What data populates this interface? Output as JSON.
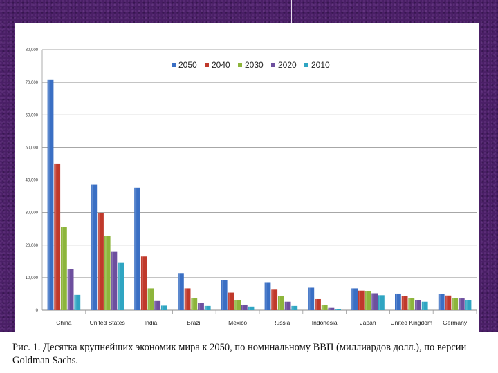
{
  "chart_data": {
    "type": "bar",
    "categories": [
      "China",
      "United States",
      "India",
      "Brazil",
      "Mexico",
      "Russia",
      "Indonesia",
      "Japan",
      "United Kingdom",
      "Germany"
    ],
    "series": [
      {
        "name": "2050",
        "color": "#3a6fc4",
        "values": [
          70700,
          38500,
          37600,
          11400,
          9300,
          8600,
          6900,
          6700,
          5100,
          5000
        ]
      },
      {
        "name": "2040",
        "color": "#c0392b",
        "values": [
          45000,
          29800,
          16500,
          6700,
          5400,
          6300,
          3400,
          6000,
          4300,
          4500
        ]
      },
      {
        "name": "2030",
        "color": "#8db53b",
        "values": [
          25600,
          22800,
          6700,
          3700,
          3000,
          4400,
          1500,
          5800,
          3700,
          3800
        ]
      },
      {
        "name": "2020",
        "color": "#6d4f9e",
        "values": [
          12600,
          17900,
          2800,
          2200,
          1700,
          2600,
          700,
          5200,
          3100,
          3600
        ]
      },
      {
        "name": "2010",
        "color": "#2fa5c2",
        "values": [
          4700,
          14500,
          1400,
          1300,
          1100,
          1300,
          300,
          4600,
          2600,
          3100
        ]
      }
    ],
    "yticks": [
      "0",
      "10,000",
      "20,000",
      "30,000",
      "40,000",
      "50,000",
      "60,000",
      "70,000",
      "80,000"
    ],
    "ylim": [
      0,
      80000
    ],
    "grid": true,
    "legend": "top"
  },
  "caption": "Рис. 1. Десятка крупнейших экономик мира к 2050, по номинальному ВВП (миллиардов долл.), по версии Goldman Sachs."
}
